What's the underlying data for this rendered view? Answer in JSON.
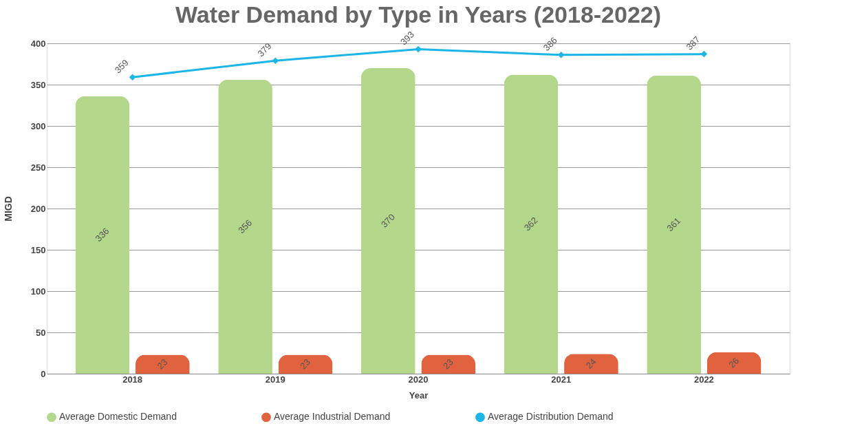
{
  "chart_data": {
    "type": "bar",
    "title": "Water Demand by Type in Years (2018-2022)",
    "xlabel": "Year",
    "ylabel": "MIGD",
    "categories": [
      "2018",
      "2019",
      "2020",
      "2021",
      "2022"
    ],
    "series": [
      {
        "name": "Average Domestic Demand",
        "color": "#b3d78b",
        "values": [
          336,
          356,
          370,
          362,
          361
        ]
      },
      {
        "name": "Average Industrial Demand",
        "color": "#e0623f",
        "values": [
          23,
          23,
          23,
          24,
          26
        ]
      },
      {
        "name": "Average Distribution Demand",
        "type": "line",
        "color": "#1cb5e8",
        "values": [
          359,
          379,
          393,
          386,
          387
        ],
        "marker": "diamond"
      }
    ],
    "ylim": [
      0,
      400
    ],
    "yticks": [
      0,
      50,
      100,
      150,
      200,
      250,
      300,
      350,
      400
    ],
    "grid": "y",
    "legend": "bottom",
    "data_labels": true
  }
}
